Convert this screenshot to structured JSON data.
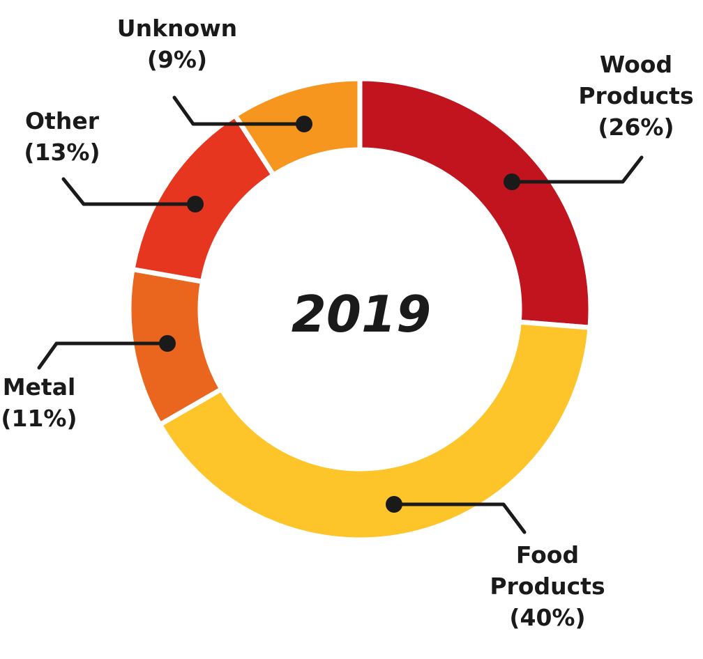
{
  "chart_data": {
    "type": "pie",
    "variant": "donut",
    "center_label": "2019",
    "start_position": "top",
    "direction": "clockwise",
    "slices": [
      {
        "label_lines": [
          "Wood",
          "Products"
        ],
        "value_text": "(26%)",
        "value": 26,
        "color": "#C1141E"
      },
      {
        "label_lines": [
          "Food",
          "Products"
        ],
        "value_text": "(40%)",
        "value": 40,
        "color": "#FDC52A"
      },
      {
        "label_lines": [
          "Metal"
        ],
        "value_text": "(11%)",
        "value": 11,
        "color": "#EA661F"
      },
      {
        "label_lines": [
          "Other"
        ],
        "value_text": "(13%)",
        "value": 13,
        "color": "#E6361F"
      },
      {
        "label_lines": [
          "Unknown"
        ],
        "value_text": "(9%)",
        "value": 9,
        "color": "#F6961E"
      }
    ]
  }
}
